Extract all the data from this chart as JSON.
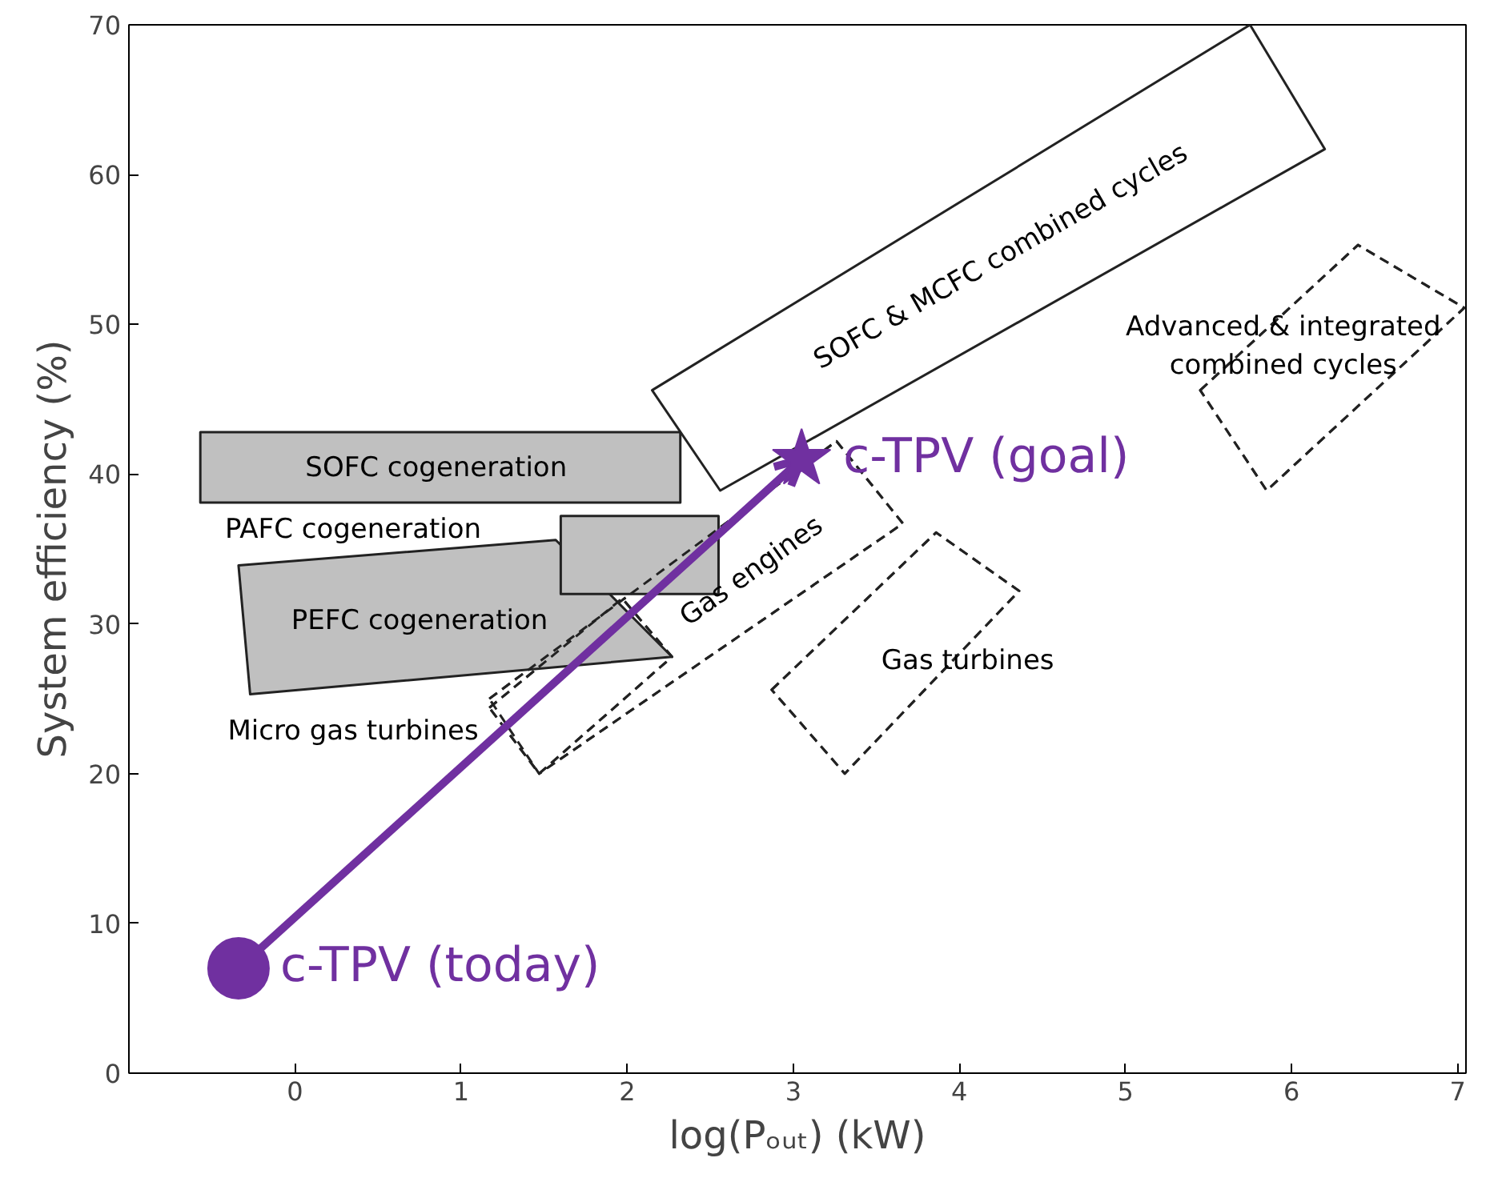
{
  "chart_data": {
    "type": "scatter",
    "xlabel": "log(Pₒᵤₜ) (kW)",
    "ylabel": "System efficiency (%)",
    "xlim": [
      -1,
      7.05
    ],
    "ylim": [
      0,
      70
    ],
    "xticks": [
      0,
      1,
      2,
      3,
      4,
      5,
      6,
      7
    ],
    "yticks": [
      0,
      10,
      20,
      30,
      40,
      50,
      60,
      70
    ],
    "grid": false,
    "series": [
      {
        "type": "area",
        "color": "#c0c0c0",
        "line_style": "solid",
        "x": [
          -0.57,
          2.32,
          2.32,
          -0.57
        ],
        "values": [
          38.1,
          38.1,
          42.8,
          42.8
        ]
      },
      {
        "type": "area",
        "color": "#c0c0c0",
        "line_style": "solid",
        "x": [
          -0.34,
          1.57,
          2.27,
          -0.27
        ],
        "values": [
          33.9,
          35.6,
          27.8,
          25.3
        ]
      },
      {
        "type": "area",
        "color": "#c0c0c0",
        "line_style": "solid",
        "x": [
          1.6,
          2.55,
          2.55,
          1.6
        ],
        "values": [
          32,
          32,
          37.2,
          37.2
        ]
      },
      {
        "type": "area",
        "color": "#ffffff",
        "line_style": "solid",
        "x": [
          2.15,
          5.75,
          6.2,
          2.56
        ],
        "values": [
          45.6,
          70,
          61.7,
          38.9
        ]
      },
      {
        "type": "area",
        "color": "#ffffff",
        "line_style": "dashed",
        "x": [
          5.45,
          6.4,
          7.04,
          5.85
        ],
        "values": [
          45.6,
          55.3,
          51.1,
          38.9
        ]
      },
      {
        "type": "area",
        "color": "#ffffff",
        "line_style": "dashed",
        "x": [
          1.17,
          3.26,
          3.66,
          1.47
        ],
        "values": [
          25,
          42.2,
          36.7,
          20
        ]
      },
      {
        "type": "area",
        "color": "#ffffff",
        "line_style": "dashed",
        "x": [
          2.87,
          3.86,
          4.36,
          3.31
        ],
        "values": [
          25.6,
          36.1,
          32.2,
          20
        ]
      },
      {
        "type": "area",
        "color": "#ffffff",
        "line_style": "dashed",
        "x": [
          1.17,
          1.97,
          2.27,
          1.47
        ],
        "values": [
          24.4,
          31.7,
          27.8,
          20
        ]
      },
      {
        "color": "#7030a0",
        "marker": "circle",
        "x": [
          -0.34
        ],
        "values": [
          7
        ]
      },
      {
        "color": "#7030a0",
        "marker": "star",
        "x": [
          3.05
        ],
        "values": [
          41
        ]
      }
    ],
    "annotations": [
      "SOFC cogeneration",
      "PAFC cogeneration",
      "PEFC cogeneration",
      "SOFC & MCFC combined cycles",
      "Advanced & integrated\ncombined cycles",
      "Gas engines",
      "Gas turbines",
      "Micro gas turbines",
      {
        "text": "c-TPV (today)",
        "x": -0.34,
        "y": 7
      },
      {
        "text": "c-TPV (goal)",
        "x": 3.05,
        "y": 41
      }
    ]
  }
}
